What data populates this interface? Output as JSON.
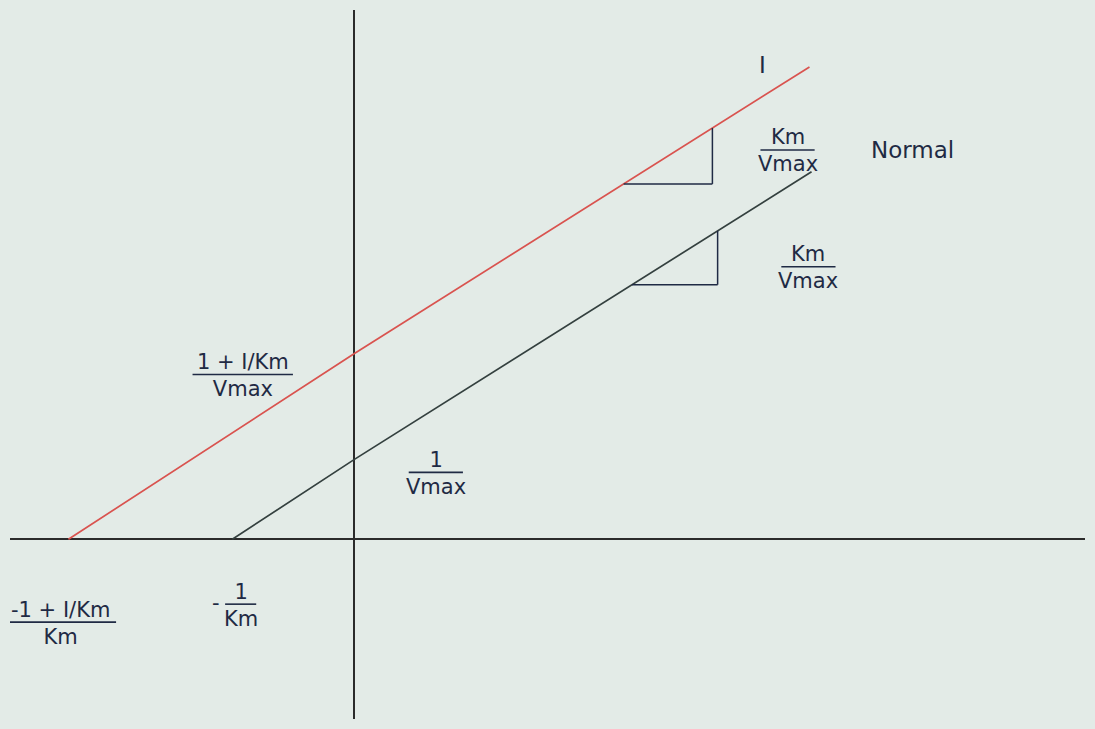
{
  "chart_data": {
    "type": "line",
    "tick_labels": false,
    "grid": false,
    "xlim": [
      -3.3,
      7.0
    ],
    "ylim": [
      -1.8,
      5.3
    ],
    "series": [
      {
        "name": "I",
        "color": "#d9534f",
        "x": [
          -2.74,
          0,
          4.36
        ],
        "values": [
          0,
          1.86,
          4.73
        ],
        "y_intercept_label": {
          "numerator": "1 + I/Km",
          "denominator": "Vmax"
        },
        "x_intercept_label": {
          "numerator": "-1 + I/Km",
          "denominator": "Km"
        },
        "slope_label": {
          "numerator": "Km",
          "denominator": "Vmax"
        }
      },
      {
        "name": "Normal",
        "color": "#34403f",
        "x": [
          -1.17,
          0,
          4.38
        ],
        "values": [
          0,
          0.8,
          3.68
        ],
        "y_intercept_label": {
          "numerator": "1",
          "denominator": "Vmax"
        },
        "x_intercept_label": {
          "sign": "-",
          "numerator": "1",
          "denominator": "Km"
        },
        "slope_label": {
          "numerator": "Km",
          "denominator": "Vmax"
        }
      }
    ]
  }
}
